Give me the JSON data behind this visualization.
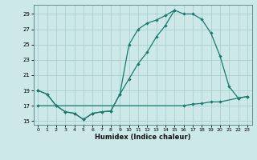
{
  "title": "",
  "xlabel": "Humidex (Indice chaleur)",
  "bg_color": "#cce8e8",
  "line_color": "#1a7a6e",
  "grid_color": "#aacfcf",
  "xlim": [
    -0.5,
    23.5
  ],
  "ylim": [
    14.5,
    30.2
  ],
  "xticks": [
    0,
    1,
    2,
    3,
    4,
    5,
    6,
    7,
    8,
    9,
    10,
    11,
    12,
    13,
    14,
    15,
    16,
    17,
    18,
    19,
    20,
    21,
    22,
    23
  ],
  "yticks": [
    15,
    17,
    19,
    21,
    23,
    25,
    27,
    29
  ],
  "line1_x": [
    0,
    1,
    2,
    3,
    4,
    5,
    6,
    7,
    8,
    9,
    10,
    11,
    12,
    13,
    14,
    15,
    16,
    17,
    18,
    19,
    20,
    21,
    22,
    23
  ],
  "line1_y": [
    19.0,
    18.5,
    17.0,
    16.2,
    16.0,
    15.2,
    16.0,
    16.2,
    16.3,
    18.5,
    20.5,
    22.5,
    24.0,
    26.0,
    27.5,
    29.5,
    29.0,
    29.0,
    28.3,
    26.5,
    23.5,
    19.5,
    18.0,
    18.2
  ],
  "line2_x": [
    0,
    1,
    2,
    3,
    4,
    5,
    6,
    7,
    8,
    9,
    10,
    11,
    12,
    13,
    14,
    15
  ],
  "line2_y": [
    19.0,
    18.5,
    17.0,
    16.2,
    16.0,
    15.2,
    16.0,
    16.2,
    16.3,
    18.5,
    25.0,
    27.0,
    27.8,
    28.2,
    28.8,
    29.5
  ],
  "line3_x": [
    0,
    16,
    17,
    18,
    19,
    20,
    22,
    23
  ],
  "line3_y": [
    17.0,
    17.0,
    17.2,
    17.3,
    17.5,
    17.5,
    18.0,
    18.2
  ]
}
